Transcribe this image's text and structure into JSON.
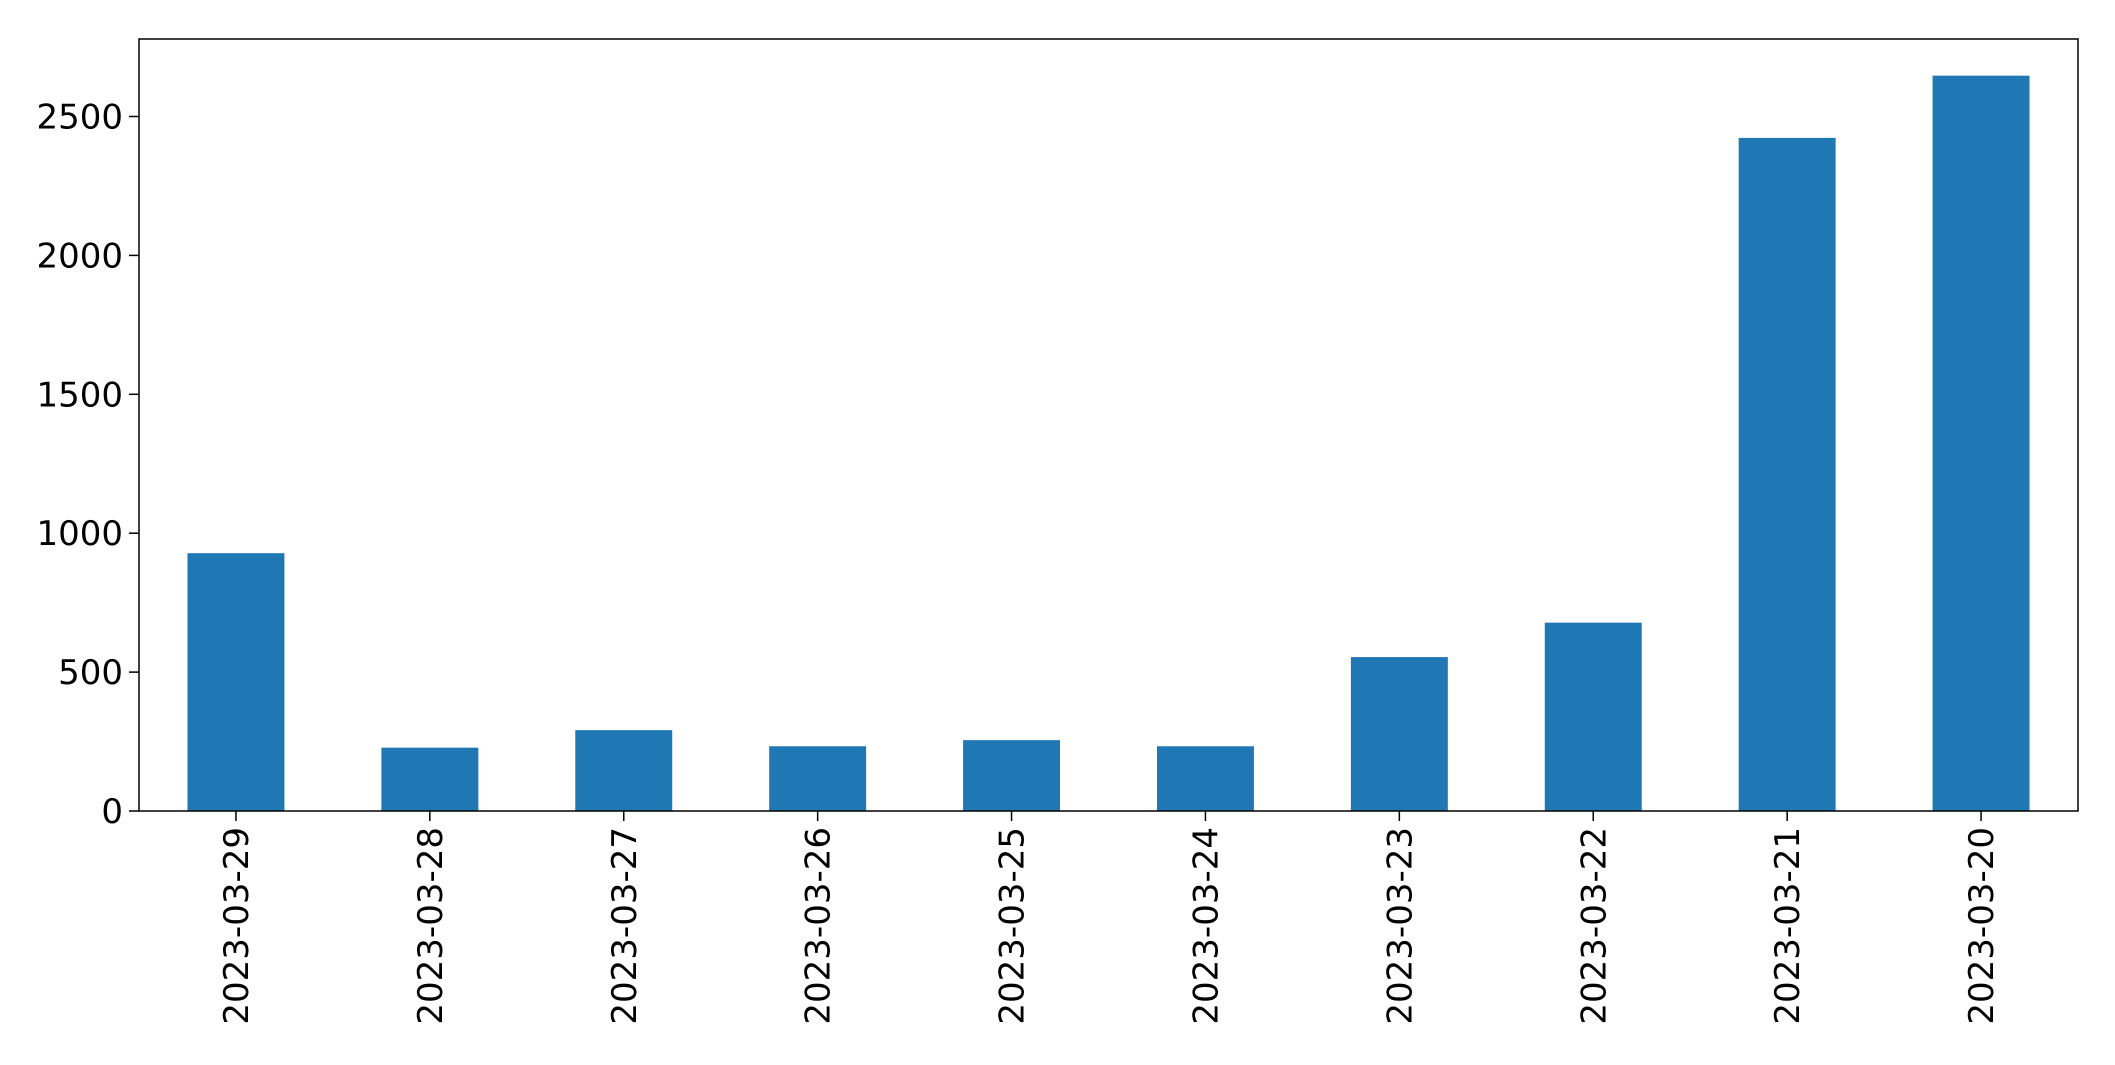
{
  "chart_data": {
    "type": "bar",
    "title": "",
    "xlabel": "",
    "ylabel": "",
    "categories": [
      "2023-03-29",
      "2023-03-28",
      "2023-03-27",
      "2023-03-26",
      "2023-03-25",
      "2023-03-24",
      "2023-03-23",
      "2023-03-22",
      "2023-03-21",
      "2023-03-20"
    ],
    "values": [
      928,
      228,
      291,
      233,
      255,
      233,
      554,
      678,
      2423,
      2647
    ],
    "ylim": [
      0,
      2779
    ],
    "yticks": [
      0,
      500,
      1000,
      1500,
      2000,
      2500
    ],
    "ytick_labels": [
      "0",
      "500",
      "1000",
      "1500",
      "2000",
      "2500"
    ],
    "grid": false,
    "legend": "none",
    "bar_color": "#1f77b4"
  }
}
